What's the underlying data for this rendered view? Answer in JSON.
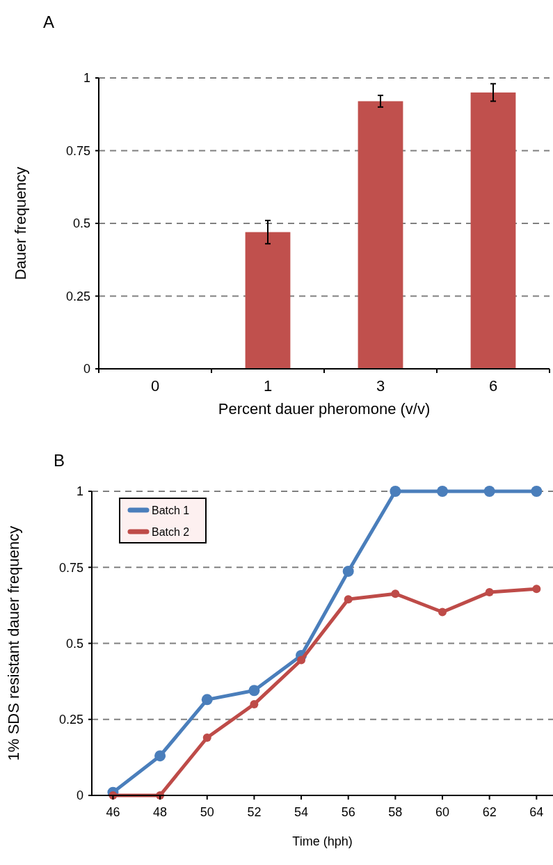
{
  "chart_data": [
    {
      "type": "bar",
      "title": "A",
      "xlabel": "Percent dauer pheromone (v/v)",
      "ylabel": "Dauer frequency",
      "categories": [
        "0",
        "1",
        "3",
        "6"
      ],
      "values": [
        0,
        0.47,
        0.92,
        0.95
      ],
      "errors": [
        null,
        0.04,
        0.02,
        0.03
      ],
      "color": "#c0504d",
      "ylim": [
        0,
        1
      ],
      "yticks": [
        0,
        0.25,
        0.5,
        0.75,
        1
      ],
      "grid": "y"
    },
    {
      "type": "line",
      "title": "B",
      "xlabel": "Time (hph)",
      "ylabel": "1% SDS resistant dauer frequency",
      "x": [
        46,
        48,
        50,
        52,
        54,
        56,
        58,
        60,
        62,
        64
      ],
      "xlim": [
        45.1,
        64.7
      ],
      "xticks": [
        46,
        48,
        50,
        52,
        54,
        56,
        58,
        60,
        62,
        64
      ],
      "ylim": [
        0,
        1
      ],
      "yticks": [
        0,
        0.25,
        0.5,
        0.75,
        1
      ],
      "grid": "y",
      "legend": "top left",
      "marker": "circle",
      "line_style": "solid",
      "series": [
        {
          "name": "Batch 1",
          "color": "#4a7ebb",
          "values": [
            0.01,
            0.13,
            0.315,
            0.345,
            0.46,
            0.737,
            1,
            1,
            1,
            1
          ]
        },
        {
          "name": "Batch 2",
          "color": "#be4b48",
          "values": [
            0,
            0,
            0.19,
            0.3,
            0.445,
            0.645,
            0.663,
            0.603,
            0.668,
            0.679
          ]
        }
      ]
    }
  ]
}
